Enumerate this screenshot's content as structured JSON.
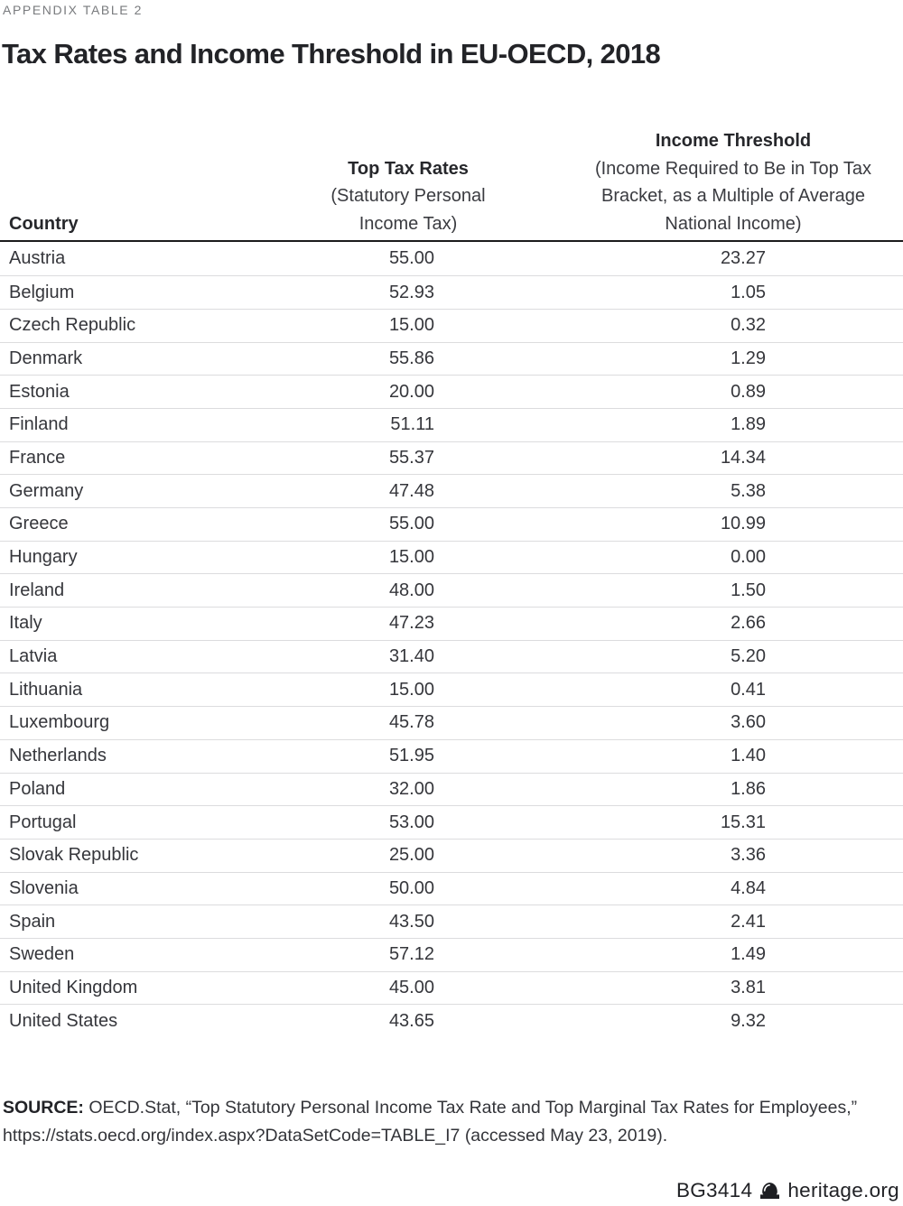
{
  "kicker": "APPENDIX TABLE 2",
  "title": "Tax Rates and Income Threshold in EU-OECD, 2018",
  "table": {
    "columns": [
      {
        "label": "Country",
        "sublabel": ""
      },
      {
        "label": "Top Tax Rates",
        "sublabel": "(Statutory Personal\nIncome Tax)"
      },
      {
        "label": "Income Threshold",
        "sublabel": "(Income Required to Be in Top Tax\nBracket, as a Multiple of Average\nNational Income)"
      }
    ],
    "rows": [
      {
        "country": "Austria",
        "top_tax_rate": "55.00",
        "income_threshold": "23.27"
      },
      {
        "country": "Belgium",
        "top_tax_rate": "52.93",
        "income_threshold": "1.05"
      },
      {
        "country": "Czech Republic",
        "top_tax_rate": "15.00",
        "income_threshold": "0.32"
      },
      {
        "country": "Denmark",
        "top_tax_rate": "55.86",
        "income_threshold": "1.29"
      },
      {
        "country": "Estonia",
        "top_tax_rate": "20.00",
        "income_threshold": "0.89"
      },
      {
        "country": "Finland",
        "top_tax_rate": "51.11",
        "income_threshold": "1.89"
      },
      {
        "country": "France",
        "top_tax_rate": "55.37",
        "income_threshold": "14.34"
      },
      {
        "country": "Germany",
        "top_tax_rate": "47.48",
        "income_threshold": "5.38"
      },
      {
        "country": "Greece",
        "top_tax_rate": "55.00",
        "income_threshold": "10.99"
      },
      {
        "country": "Hungary",
        "top_tax_rate": "15.00",
        "income_threshold": "0.00"
      },
      {
        "country": "Ireland",
        "top_tax_rate": "48.00",
        "income_threshold": "1.50"
      },
      {
        "country": "Italy",
        "top_tax_rate": "47.23",
        "income_threshold": "2.66"
      },
      {
        "country": "Latvia",
        "top_tax_rate": "31.40",
        "income_threshold": "5.20"
      },
      {
        "country": "Lithuania",
        "top_tax_rate": "15.00",
        "income_threshold": "0.41"
      },
      {
        "country": "Luxembourg",
        "top_tax_rate": "45.78",
        "income_threshold": "3.60"
      },
      {
        "country": "Netherlands",
        "top_tax_rate": "51.95",
        "income_threshold": "1.40"
      },
      {
        "country": "Poland",
        "top_tax_rate": "32.00",
        "income_threshold": "1.86"
      },
      {
        "country": "Portugal",
        "top_tax_rate": "53.00",
        "income_threshold": "15.31"
      },
      {
        "country": "Slovak Republic",
        "top_tax_rate": "25.00",
        "income_threshold": "3.36"
      },
      {
        "country": "Slovenia",
        "top_tax_rate": "50.00",
        "income_threshold": "4.84"
      },
      {
        "country": "Spain",
        "top_tax_rate": "43.50",
        "income_threshold": "2.41"
      },
      {
        "country": "Sweden",
        "top_tax_rate": "57.12",
        "income_threshold": "1.49"
      },
      {
        "country": "United Kingdom",
        "top_tax_rate": "45.00",
        "income_threshold": "3.81"
      },
      {
        "country": "United States",
        "top_tax_rate": "43.65",
        "income_threshold": "9.32"
      }
    ]
  },
  "source": {
    "label": "SOURCE:",
    "text": " OECD.Stat, “Top Statutory Personal Income Tax Rate and Top Marginal Tax Rates for Employees,”\nhttps://stats.oecd.org/index.aspx?DataSetCode=TABLE_I7 (accessed May 23, 2019)."
  },
  "footer": {
    "code": "BG3414",
    "site": "heritage.org",
    "logo_icon": "liberty-bell-icon"
  },
  "colors": {
    "kicker_gray": "#797b7e",
    "title_black": "#222327",
    "header_rule": "#1b1b1c",
    "row_separator": "#dcdcde",
    "body_text": "#35363b"
  }
}
